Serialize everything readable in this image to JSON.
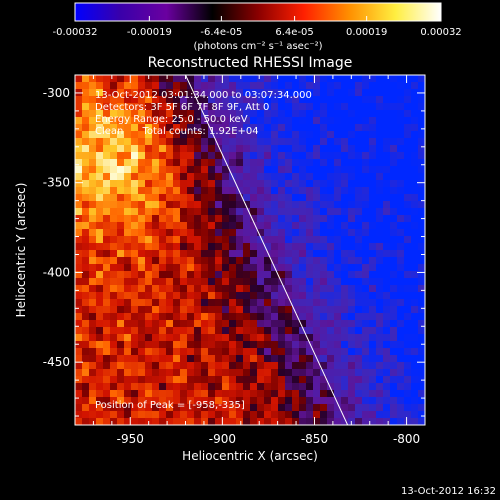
{
  "chart_data": {
    "type": "heatmap",
    "title": "Reconstructed RHESSI Image",
    "xlabel": "Heliocentric X (arcsec)",
    "ylabel": "Heliocentric Y (arcsec)",
    "xlim": [
      -980,
      -790
    ],
    "ylim": [
      -485,
      -290
    ],
    "xticks": [
      -950,
      -900,
      -850,
      -800
    ],
    "xtick_labels": [
      "-950",
      "-900",
      "-850",
      "-800"
    ],
    "yticks": [
      -300,
      -350,
      -400,
      -450
    ],
    "ytick_labels": [
      "-300",
      "-350",
      "-400",
      "-450"
    ],
    "colorbar": {
      "range": [
        -0.00032,
        0.00032
      ],
      "ticks": [
        -0.00032,
        -0.00019,
        -6.4e-05,
        6.4e-05,
        0.00019,
        0.00032
      ],
      "tick_labels": [
        "-0.00032",
        "-0.00019",
        "-6.4e-05",
        "6.4e-05",
        "0.00019",
        "0.00032"
      ],
      "unit_label": "(photons cm⁻² s⁻¹ asec⁻²)",
      "colors": [
        "#0000ff",
        "#3a00aa",
        "#6a00a0",
        "#000000",
        "#8a0000",
        "#ff2000",
        "#ff9000",
        "#ffee40",
        "#ffffff"
      ]
    },
    "annotations": [
      "13-Oct-2012 03:01:34.000 to 03:07:34.000",
      "Detectors: 3F 5F 6F 7F 8F 9F, Att 0",
      "Energy Range: 25.0 - 50.0 keV",
      "Clean      Total counts: 1.92E+04"
    ],
    "peak_label": "Position of Peak = [-958,-335]",
    "limb_line": [
      [
        -920,
        -290
      ],
      [
        -832,
        -485
      ]
    ],
    "grid": false
  },
  "footer": {
    "timestamp": "13-Oct-2012 16:32"
  }
}
